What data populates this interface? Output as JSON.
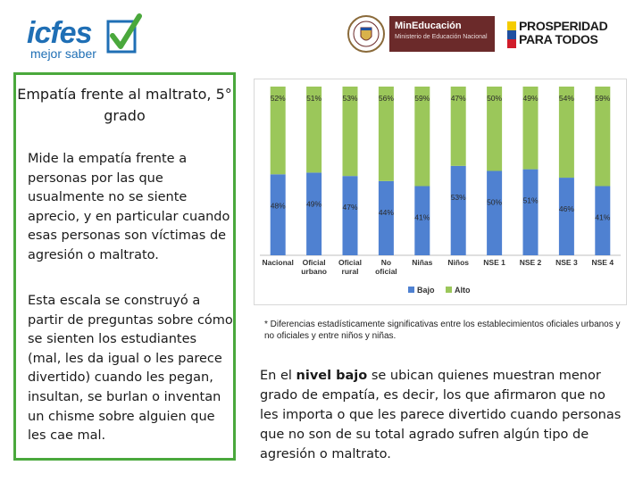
{
  "header": {
    "icfes_word": "icfes",
    "icfes_tagline": "mejor saber",
    "ministry_title": "MinEducación",
    "ministry_subtitle": "Ministerio de Educación Nacional",
    "prosperidad_line1": "PROSPERIDAD",
    "prosperidad_line2": "PARA TODOS",
    "colors": {
      "icfes_blue": "#1f6fb5",
      "ministry_red": "#6b2a2a",
      "flag": [
        "#f4cc00",
        "#1f4fa0",
        "#d01c2a"
      ]
    }
  },
  "panel": {
    "title": "Empatía frente al maltrato, 5° grado",
    "paragraph1": "Mide la empatía frente a personas por las que usualmente no se siente aprecio, y en particular cuando esas personas son víctimas de agresión o maltrato.",
    "paragraph2": "Esta escala se construyó a partir de preguntas sobre cómo se sienten los estudiantes (mal, les da igual o les parece divertido) cuando les pegan, insultan, se burlan o inventan un chisme sobre alguien que les cae mal.",
    "border_color": "#4aa83c"
  },
  "chart_data": {
    "type": "bar",
    "stacked": true,
    "percent": true,
    "categories": [
      "Nacional",
      "Oficial urbano",
      "Oficial rural",
      "No oficial",
      "Niñas",
      "Niños",
      "NSE 1",
      "NSE 2",
      "NSE 3",
      "NSE 4"
    ],
    "series": [
      {
        "name": "Bajo",
        "color": "#4f81d1",
        "values": [
          48,
          49,
          47,
          44,
          41,
          53,
          50,
          51,
          46,
          41
        ]
      },
      {
        "name": "Alto",
        "color": "#9bc75a",
        "values": [
          52,
          51,
          53,
          56,
          59,
          47,
          50,
          49,
          54,
          59
        ]
      }
    ],
    "ylim": [
      0,
      100
    ],
    "legend": "bottom",
    "grid": false
  },
  "note": "* Diferencias estadísticamente significativas entre los establecimientos oficiales urbanos y no oficiales y entre niños y niñas.",
  "body": {
    "prefix": "En el ",
    "bold": "nivel bajo",
    "suffix": " se ubican quienes muestran menor grado de empatía, es decir, los que afirmaron que no les importa o que les parece divertido cuando personas que no son de su total agrado sufren algún tipo de agresión o maltrato."
  }
}
